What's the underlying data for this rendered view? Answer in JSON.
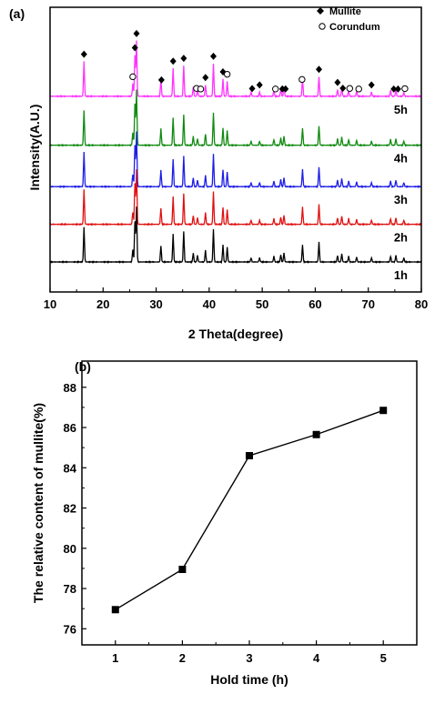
{
  "chart_data": [
    {
      "panel_label": "(a)",
      "type": "line",
      "xlabel": "2 Theta(degree)",
      "ylabel": "Intensity(A.U.)",
      "xlim": [
        10,
        80
      ],
      "xticks": [
        "10",
        "20",
        "30",
        "40",
        "50",
        "60",
        "70",
        "80"
      ],
      "legend": {
        "position": "top-right",
        "entries": [
          {
            "name": "Mullite",
            "marker": "filled-diamond"
          },
          {
            "name": "Corundum",
            "marker": "open-circle"
          }
        ]
      },
      "colors": {
        "5h": "#ff33ff",
        "4h": "#108a10",
        "3h": "#1e1ee6",
        "2h": "#e01010",
        "1h": "#000000"
      },
      "series": [
        {
          "name": "5h",
          "color": "#ff33ff",
          "baseline": 0.88
        },
        {
          "name": "4h",
          "color": "#108a10",
          "baseline": 0.62
        },
        {
          "name": "3h",
          "color": "#1e1ee6",
          "baseline": 0.4
        },
        {
          "name": "2h",
          "color": "#e01010",
          "baseline": 0.2
        },
        {
          "name": "1h",
          "color": "#000000",
          "baseline": 0.0
        }
      ],
      "peaks": [
        {
          "x": 16.4,
          "h": 0.85
        },
        {
          "x": 25.6,
          "h": 0.3
        },
        {
          "x": 26.0,
          "h": 1.0
        },
        {
          "x": 26.3,
          "h": 1.35
        },
        {
          "x": 30.9,
          "h": 0.4
        },
        {
          "x": 33.2,
          "h": 0.68
        },
        {
          "x": 35.2,
          "h": 0.75
        },
        {
          "x": 37.0,
          "h": 0.22
        },
        {
          "x": 37.8,
          "h": 0.16
        },
        {
          "x": 39.3,
          "h": 0.28
        },
        {
          "x": 40.8,
          "h": 0.8
        },
        {
          "x": 42.6,
          "h": 0.42
        },
        {
          "x": 43.4,
          "h": 0.36
        },
        {
          "x": 47.9,
          "h": 0.1
        },
        {
          "x": 49.5,
          "h": 0.1
        },
        {
          "x": 52.2,
          "h": 0.14
        },
        {
          "x": 53.5,
          "h": 0.18
        },
        {
          "x": 54.1,
          "h": 0.22
        },
        {
          "x": 57.6,
          "h": 0.42
        },
        {
          "x": 60.7,
          "h": 0.48
        },
        {
          "x": 64.2,
          "h": 0.16
        },
        {
          "x": 65.0,
          "h": 0.2
        },
        {
          "x": 66.3,
          "h": 0.14
        },
        {
          "x": 67.8,
          "h": 0.12
        },
        {
          "x": 70.6,
          "h": 0.1
        },
        {
          "x": 74.2,
          "h": 0.14
        },
        {
          "x": 75.2,
          "h": 0.16
        },
        {
          "x": 76.7,
          "h": 0.1
        }
      ],
      "mullite_markers": [
        16.4,
        26.0,
        26.3,
        31.0,
        33.2,
        35.2,
        39.3,
        40.8,
        42.6,
        48.1,
        49.5,
        53.8,
        54.4,
        60.7,
        64.2,
        65.2,
        70.6,
        74.8,
        75.6
      ],
      "corundum_markers": [
        25.6,
        37.6,
        38.4,
        43.4,
        52.5,
        57.5,
        66.5,
        68.2,
        76.9
      ]
    },
    {
      "panel_label": "(b)",
      "type": "line",
      "xlabel": "Hold time (h)",
      "ylabel": "The relative content of mullite(%)",
      "xlim": [
        0.5,
        5.5
      ],
      "ylim": [
        75.2,
        89.3
      ],
      "xticks": [
        1,
        2,
        3,
        4,
        5
      ],
      "yticks": [
        76,
        78,
        80,
        82,
        84,
        86,
        88
      ],
      "x": [
        1,
        2,
        3,
        4,
        5
      ],
      "y": [
        76.95,
        78.95,
        84.6,
        85.65,
        86.85
      ],
      "marker": "filled-square",
      "color": "#000000"
    }
  ]
}
